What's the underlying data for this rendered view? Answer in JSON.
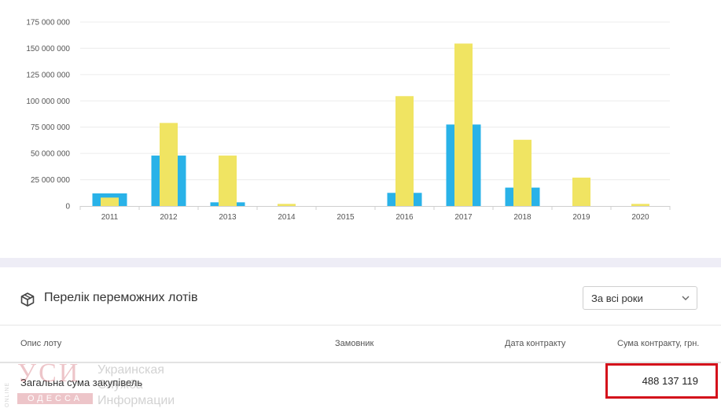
{
  "chart_data": {
    "type": "bar",
    "categories": [
      "2011",
      "2012",
      "2013",
      "2014",
      "2015",
      "2016",
      "2017",
      "2018",
      "2019",
      "2020"
    ],
    "series": [
      {
        "color": "#29b2e8",
        "values": [
          12000000,
          48000000,
          3500000,
          0,
          0,
          12500000,
          77500000,
          17500000,
          0,
          0
        ]
      },
      {
        "color": "#f0e462",
        "values": [
          8000000,
          79000000,
          48000000,
          2000000,
          0,
          104500000,
          154500000,
          63000000,
          27000000,
          2000000
        ]
      }
    ],
    "y_ticks": [
      "0",
      "25 000 000",
      "50 000 000",
      "75 000 000",
      "100 000 000",
      "125 000 000",
      "150 000 000",
      "175 000 000"
    ],
    "ylim": [
      0,
      175000000
    ],
    "grid": true
  },
  "lots": {
    "title": "Перелік переможних лотів",
    "icon": "box-icon",
    "year_filter": {
      "selected": "За всі роки"
    }
  },
  "table": {
    "columns": [
      "Опис лоту",
      "Замовник",
      "Дата контракту",
      "Сума контракту, грн."
    ],
    "total_row": {
      "label": "Загальна сума закупівель",
      "value": "488 137 119"
    }
  },
  "watermark": {
    "online": "ONLINE",
    "logo": "УСИ",
    "city": "ОДЕССА",
    "lines": [
      "Украинская",
      "Служба",
      "Информации"
    ]
  },
  "colors": {
    "highlight_border": "#d4111b",
    "divider": "#eeedf6"
  }
}
